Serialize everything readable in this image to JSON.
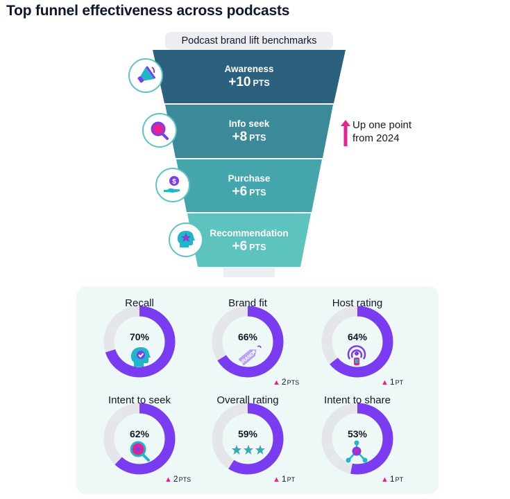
{
  "title": "Top funnel effectiveness across podcasts",
  "funnel_subtitle": "Podcast brand lift benchmarks",
  "trend_note": {
    "line1": "Up one point",
    "line2": "from 2024",
    "arrow_color": "#e4238e"
  },
  "colors": {
    "awareness": "#2b607e",
    "info_seek": "#3a8a99",
    "purchase": "#45a5ac",
    "recommendation": "#5cc3be",
    "donut_fill": "#7a3cf0",
    "donut_track": "#e4e6ea",
    "panel_bg": "#eef8f6",
    "delta_marker": "#e4238e"
  },
  "funnel": {
    "stages": [
      {
        "name": "Awareness",
        "value": "+10",
        "unit": "PTS",
        "icon": "megaphone-icon"
      },
      {
        "name": "Info seek",
        "value": "+8",
        "unit": "PTS",
        "icon": "magnifier-icon"
      },
      {
        "name": "Purchase",
        "value": "+6",
        "unit": "PTS",
        "icon": "money-hand-icon"
      },
      {
        "name": "Recommendation",
        "value": "+6",
        "unit": "PTS",
        "icon": "head-star-icon"
      }
    ]
  },
  "metrics": [
    {
      "title": "Recall",
      "value_label": "70%",
      "delta": null,
      "delta_unit": null,
      "icon": "head-check-icon"
    },
    {
      "title": "Brand fit",
      "value_label": "66%",
      "delta": "2",
      "delta_unit": "PTS",
      "icon": "brand-tag-icon"
    },
    {
      "title": "Host rating",
      "value_label": "64%",
      "delta": "1",
      "delta_unit": "PT",
      "icon": "podcast-mic-icon"
    },
    {
      "title": "Intent to seek",
      "value_label": "62%",
      "delta": "2",
      "delta_unit": "PTS",
      "icon": "search-play-icon"
    },
    {
      "title": "Overall rating",
      "value_label": "59%",
      "delta": "1",
      "delta_unit": "PT",
      "icon": "stars-icon"
    },
    {
      "title": "Intent to share",
      "value_label": "53%",
      "delta": "1",
      "delta_unit": "PT",
      "icon": "share-nodes-icon"
    }
  ],
  "brand_tag_text": "BRAND",
  "chart_data": [
    {
      "type": "bar",
      "title": "Podcast brand lift benchmarks",
      "categories": [
        "Awareness",
        "Info seek",
        "Purchase",
        "Recommendation"
      ],
      "values": [
        10,
        8,
        6,
        6
      ],
      "unit": "PTS"
    },
    {
      "type": "pie",
      "categories": [
        "Recall",
        "Brand fit",
        "Host rating",
        "Intent to seek",
        "Overall rating",
        "Intent to share"
      ],
      "values": [
        70,
        66,
        64,
        62,
        59,
        53
      ],
      "unit": "%",
      "change_from_2024": [
        null,
        2,
        1,
        2,
        1,
        1
      ]
    }
  ]
}
